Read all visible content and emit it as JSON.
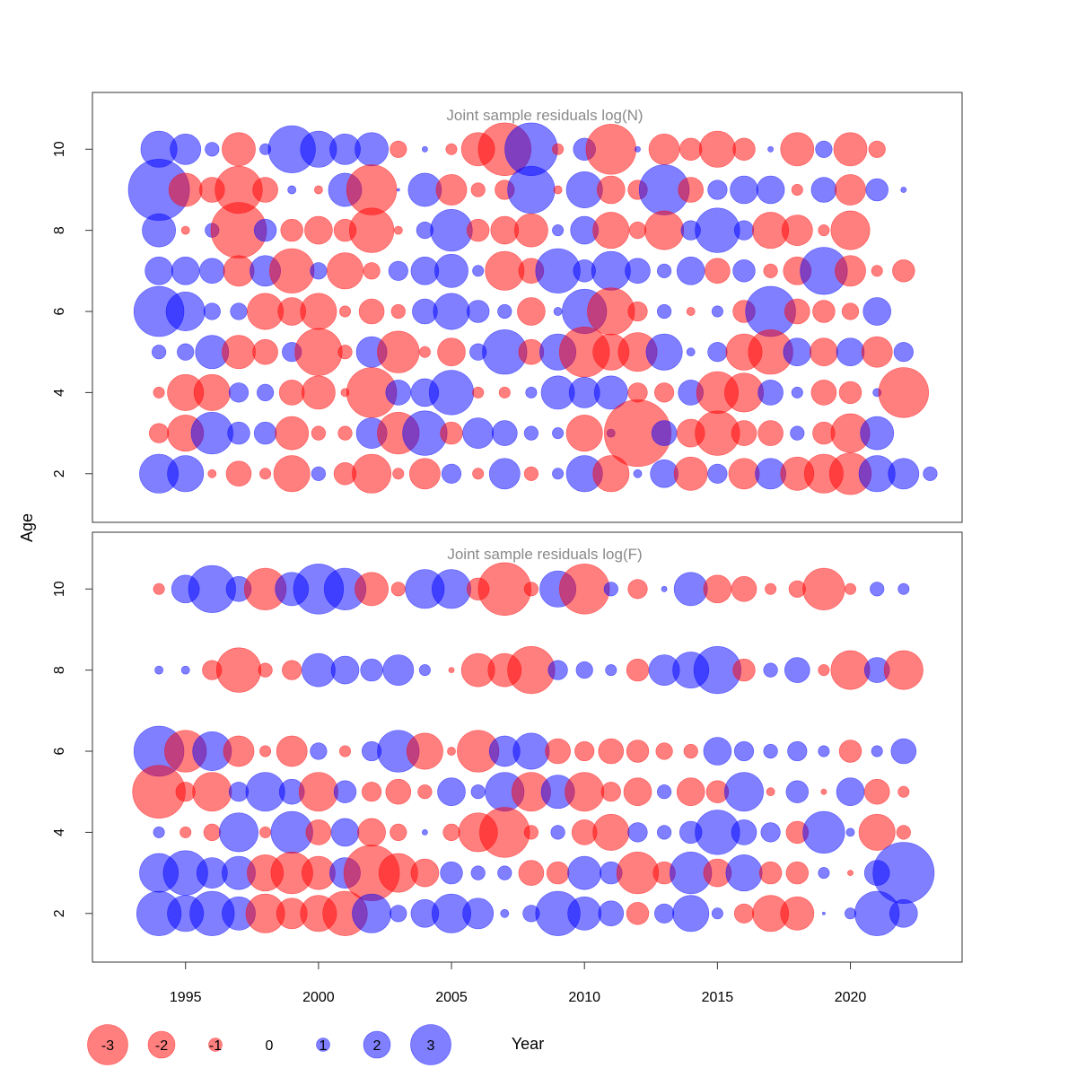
{
  "colors": {
    "negative": "#ff0000",
    "positive": "#0000ff",
    "opacity": 0.5,
    "title_gray": "#8a8a8a"
  },
  "chart_data": {
    "type": "scatter",
    "subtype": "bubble",
    "xlabel": "Year",
    "ylabel": "Age",
    "xlim": [
      1991.5,
      2024.2
    ],
    "x_ticks": [
      1995,
      2000,
      2005,
      2010,
      2015,
      2020
    ],
    "y_ticks": [
      2,
      4,
      6,
      8,
      10
    ],
    "ylim": [
      0.8,
      11.4
    ],
    "start_year": 1994,
    "legend": {
      "position": "bottom",
      "values": [
        -3,
        -2,
        -1,
        0,
        1,
        2,
        3
      ],
      "labels": [
        "-3",
        "-2",
        "-1",
        "0",
        "1",
        "2",
        "3"
      ]
    },
    "panels": [
      {
        "title": "Joint sample residuals log(N)",
        "ages": [
          10,
          9,
          8,
          7,
          6,
          5,
          4,
          3,
          2
        ],
        "residuals": [
          [
            1.3,
            1.1,
            0.5,
            -1.2,
            0.4,
            1.7,
            1.3,
            1.1,
            1.2,
            -0.6,
            0.2,
            -0.4,
            -1.2,
            -1.9,
            1.9,
            -0.4,
            0.8,
            -1.8,
            0.2,
            -1.1,
            -0.8,
            -1.3,
            -0.8,
            0.2,
            -1.2,
            0.6,
            -1.2,
            -0.6
          ],
          [
            2.2,
            -1.2,
            -0.9,
            -1.7,
            -0.9,
            0.3,
            -0.3,
            1.2,
            -1.8,
            0.1,
            1.2,
            -1.1,
            -0.5,
            -0.7,
            1.7,
            -0.3,
            1.3,
            -1.0,
            -0.7,
            1.8,
            -0.9,
            0.7,
            1.0,
            1.0,
            -0.4,
            0.9,
            -1.1,
            0.8,
            0.2
          ],
          [
            1.2,
            -0.3,
            0.5,
            -2.0,
            0.8,
            -0.8,
            -1.0,
            -0.8,
            -1.6,
            -0.3,
            0.6,
            1.5,
            -0.8,
            -1.0,
            -1.2,
            0.4,
            1.0,
            -1.3,
            -0.6,
            -1.4,
            0.7,
            1.6,
            0.7,
            -1.3,
            -1.1,
            -0.4,
            -1.4
          ],
          [
            1.0,
            1.0,
            0.9,
            -1.1,
            1.1,
            -1.6,
            0.6,
            -1.3,
            -0.6,
            0.7,
            1.0,
            1.2,
            0.4,
            -1.4,
            -0.9,
            1.6,
            0.8,
            1.4,
            0.9,
            0.5,
            1.0,
            -0.9,
            0.8,
            -0.5,
            -1.0,
            1.7,
            -1.1,
            -0.4,
            -0.8
          ],
          [
            1.8,
            1.4,
            0.6,
            0.6,
            -1.3,
            -1.0,
            -1.3,
            -0.4,
            -0.9,
            -0.5,
            0.9,
            1.3,
            0.8,
            0.5,
            -1.0,
            0.3,
            1.6,
            -1.7,
            -0.7,
            0.5,
            -0.3,
            0.4,
            -0.8,
            1.8,
            -0.9,
            -0.8,
            -0.6,
            1.0
          ],
          [
            0.5,
            0.6,
            1.2,
            -1.2,
            -0.9,
            0.7,
            -1.7,
            -0.5,
            1.1,
            -1.5,
            -0.4,
            -1.0,
            0.6,
            1.6,
            -0.9,
            1.3,
            -1.8,
            -1.3,
            -1.4,
            1.3,
            0.3,
            0.7,
            -1.3,
            -1.6,
            1.0,
            -1.0,
            1.0,
            -1.1,
            0.7
          ],
          [
            -0.4,
            -1.3,
            -1.3,
            0.7,
            0.6,
            -0.9,
            -1.2,
            -0.3,
            -1.8,
            0.9,
            1.0,
            1.6,
            -0.4,
            -0.4,
            0.4,
            1.2,
            1.1,
            1.2,
            -0.7,
            -0.7,
            0.9,
            -1.5,
            -1.4,
            0.9,
            0.4,
            -0.9,
            -0.8,
            0.3,
            -1.8
          ],
          [
            -0.7,
            -1.3,
            1.5,
            0.8,
            0.8,
            -1.2,
            -0.5,
            -0.5,
            1.1,
            -1.5,
            1.6,
            -0.8,
            1.1,
            0.9,
            0.5,
            0.4,
            -1.3,
            0.3,
            -2.4,
            0.9,
            -1.0,
            -1.6,
            -0.9,
            -0.9,
            0.5,
            -0.8,
            -1.4,
            1.2
          ],
          [
            1.4,
            1.3,
            -0.3,
            -0.9,
            -0.4,
            -1.3,
            0.5,
            -0.8,
            -1.4,
            -0.4,
            -1.1,
            0.7,
            -0.4,
            1.1,
            -0.5,
            0.4,
            1.3,
            -1.3,
            0.3,
            1.0,
            -1.2,
            0.7,
            -1.1,
            1.1,
            -1.2,
            -1.4,
            -1.5,
            1.3,
            1.1,
            0.5
          ]
        ]
      },
      {
        "title": "Joint sample residuals log(F)",
        "ages": [
          10,
          8,
          6,
          5,
          4,
          3,
          2
        ],
        "residuals": [
          [
            -0.4,
            1.0,
            1.7,
            0.9,
            -1.5,
            1.2,
            1.8,
            1.5,
            -1.2,
            -0.5,
            1.4,
            1.4,
            -0.8,
            -1.9,
            -0.5,
            1.3,
            -1.8,
            0.5,
            -0.7,
            0.2,
            1.2,
            -1.0,
            -0.9,
            -0.4,
            -0.6,
            -1.5,
            -0.4,
            0.5,
            0.4
          ],
          [
            0.3,
            0.3,
            -0.7,
            -1.6,
            -0.5,
            -0.7,
            1.2,
            1.0,
            0.8,
            1.1,
            0.4,
            -0.2,
            -1.2,
            -1.2,
            -1.7,
            0.7,
            0.6,
            0.4,
            -0.8,
            1.1,
            1.3,
            1.7,
            -0.8,
            0.5,
            0.9,
            -0.4,
            -1.4,
            0.9,
            -1.4
          ],
          [
            1.8,
            -1.5,
            1.4,
            -1.1,
            -0.4,
            -1.1,
            0.6,
            -0.4,
            0.7,
            1.5,
            -1.3,
            -0.3,
            -1.5,
            1.1,
            1.3,
            -0.9,
            -0.7,
            -0.9,
            -0.8,
            -0.6,
            -0.5,
            1.0,
            0.7,
            0.5,
            0.7,
            0.4,
            -0.8,
            0.4,
            0.9
          ],
          [
            -1.9,
            -0.7,
            -1.4,
            0.7,
            1.4,
            0.9,
            -1.4,
            0.8,
            -0.7,
            -0.9,
            -0.5,
            1.0,
            0.5,
            1.4,
            -1.4,
            1.2,
            -1.4,
            -0.7,
            -1.0,
            0.5,
            -1.0,
            -0.8,
            1.4,
            -0.3,
            0.8,
            -0.2,
            1.0,
            -0.9,
            -0.4
          ],
          [
            0.4,
            -0.4,
            -0.6,
            1.4,
            -0.4,
            1.5,
            -0.9,
            1.0,
            -1.0,
            -0.6,
            0.2,
            -0.6,
            -1.4,
            -1.8,
            -0.5,
            0.5,
            -0.9,
            -1.3,
            0.7,
            0.5,
            0.8,
            1.6,
            0.9,
            0.7,
            -0.8,
            1.5,
            0.3,
            -1.3,
            -0.5
          ],
          [
            1.4,
            1.6,
            1.1,
            1.2,
            -1.3,
            -1.5,
            -1.2,
            1.1,
            -2.0,
            -1.4,
            -1.0,
            0.8,
            0.5,
            0.5,
            -0.9,
            -0.8,
            1.2,
            0.8,
            -1.5,
            -0.8,
            1.5,
            -1.0,
            1.3,
            -0.8,
            -0.8,
            0.4,
            -0.2,
            0.9,
            2.2
          ],
          [
            1.6,
            1.3,
            1.6,
            1.2,
            -1.4,
            -1.1,
            -1.3,
            -1.6,
            1.4,
            0.6,
            1.0,
            1.4,
            1.1,
            0.3,
            0.6,
            1.6,
            1.2,
            0.9,
            -0.8,
            0.7,
            1.3,
            0.4,
            -0.7,
            -1.3,
            -1.2,
            0.1,
            0.4,
            1.6,
            1.0
          ]
        ]
      }
    ]
  }
}
